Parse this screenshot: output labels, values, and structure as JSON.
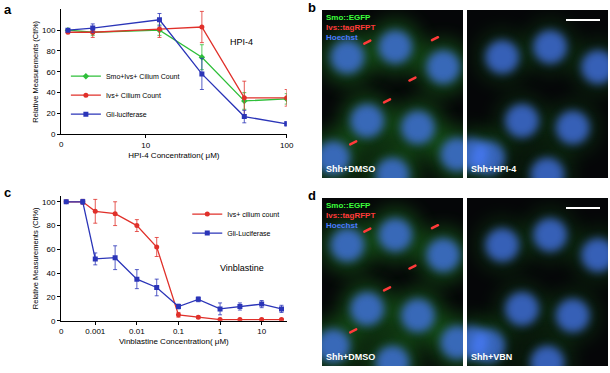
{
  "chart_data": [
    {
      "type": "line",
      "panel_label": "a",
      "x_label": "HPI-4 Concentration( μM)",
      "y_label": "Relative Measurements (Ctl%)",
      "annotations": [
        "HPI-4"
      ],
      "x_origin_label": "0",
      "log": "x",
      "x": [
        2.8,
        4.2,
        12.5,
        25,
        50,
        100
      ],
      "series": [
        {
          "name": "Smo+Ivs+ Cilium Count",
          "color": "#2fbf3a",
          "marker": "diamond",
          "values": [
            100,
            98,
            100,
            74,
            32,
            34
          ],
          "errors": [
            0,
            3,
            5,
            12,
            8,
            5
          ]
        },
        {
          "name": "Ivs+ Cilium Count",
          "color": "#e0302a",
          "marker": "circle",
          "values": [
            98,
            98,
            101,
            103,
            35,
            35
          ],
          "errors": [
            0,
            5,
            8,
            15,
            16,
            8
          ]
        },
        {
          "name": "Gli-luciferase",
          "color": "#2b35b8",
          "marker": "square",
          "values": [
            100,
            102,
            110,
            58,
            17,
            10
          ],
          "errors": [
            0,
            4,
            6,
            15,
            6,
            2
          ]
        }
      ],
      "xlim": [
        2.5,
        100
      ],
      "xticks": [
        10,
        100
      ],
      "ylim": [
        0,
        120
      ],
      "yticks": [
        0,
        20,
        40,
        60,
        80,
        100
      ],
      "grid": false,
      "legend": "lower left"
    },
    {
      "type": "line",
      "panel_label": "c",
      "x_label": "Vinblastine Concentration( μM)",
      "y_label": "Relative Measurements (Ctl%)",
      "annotations": [
        "Vinblastine"
      ],
      "x_origin_label": "0",
      "log": "x",
      "x": [
        0.0002,
        0.0005,
        0.001,
        0.003,
        0.01,
        0.03,
        0.1,
        0.3,
        1,
        3,
        10,
        30
      ],
      "series": [
        {
          "name": "Ivs+ cilium count",
          "color": "#e0302a",
          "marker": "circle",
          "values": [
            100,
            100,
            92,
            90,
            80,
            62,
            5,
            3,
            1,
            1,
            1,
            1
          ],
          "errors": [
            0,
            2,
            10,
            10,
            5,
            8,
            2,
            1,
            1,
            1,
            1,
            1
          ]
        },
        {
          "name": "Gli-Luciferase",
          "color": "#2b35b8",
          "marker": "square",
          "values": [
            100,
            100,
            52,
            53,
            35,
            28,
            12,
            18,
            10,
            12,
            14,
            10
          ],
          "errors": [
            0,
            2,
            5,
            10,
            8,
            7,
            2,
            2,
            5,
            3,
            3,
            3
          ]
        }
      ],
      "xlim": [
        0.00015,
        40
      ],
      "xticks": [
        0.001,
        0.01,
        0.1,
        1,
        10
      ],
      "ylim": [
        0,
        105
      ],
      "yticks": [
        0,
        20,
        40,
        60,
        80,
        100
      ],
      "grid": false,
      "legend": "upper right"
    }
  ],
  "images": [
    {
      "panel_label": "b",
      "channels": [
        {
          "name": "Smo::EGFP",
          "color": "#3cff3c"
        },
        {
          "name": "Ivs::tagRFPT",
          "color": "#ff3a3a"
        },
        {
          "name": "Hoechst",
          "color": "#4a7bff"
        }
      ],
      "conditions": [
        "Shh+DMSO",
        "Shh+HPI-4"
      ]
    },
    {
      "panel_label": "d",
      "channels": [
        {
          "name": "Smo::EGFP",
          "color": "#3cff3c"
        },
        {
          "name": "Ivs::tagRFPT",
          "color": "#ff3a3a"
        },
        {
          "name": "Hoechst",
          "color": "#4a7bff"
        }
      ],
      "conditions": [
        "Shh+DMSO",
        "Shh+VBN"
      ]
    }
  ]
}
